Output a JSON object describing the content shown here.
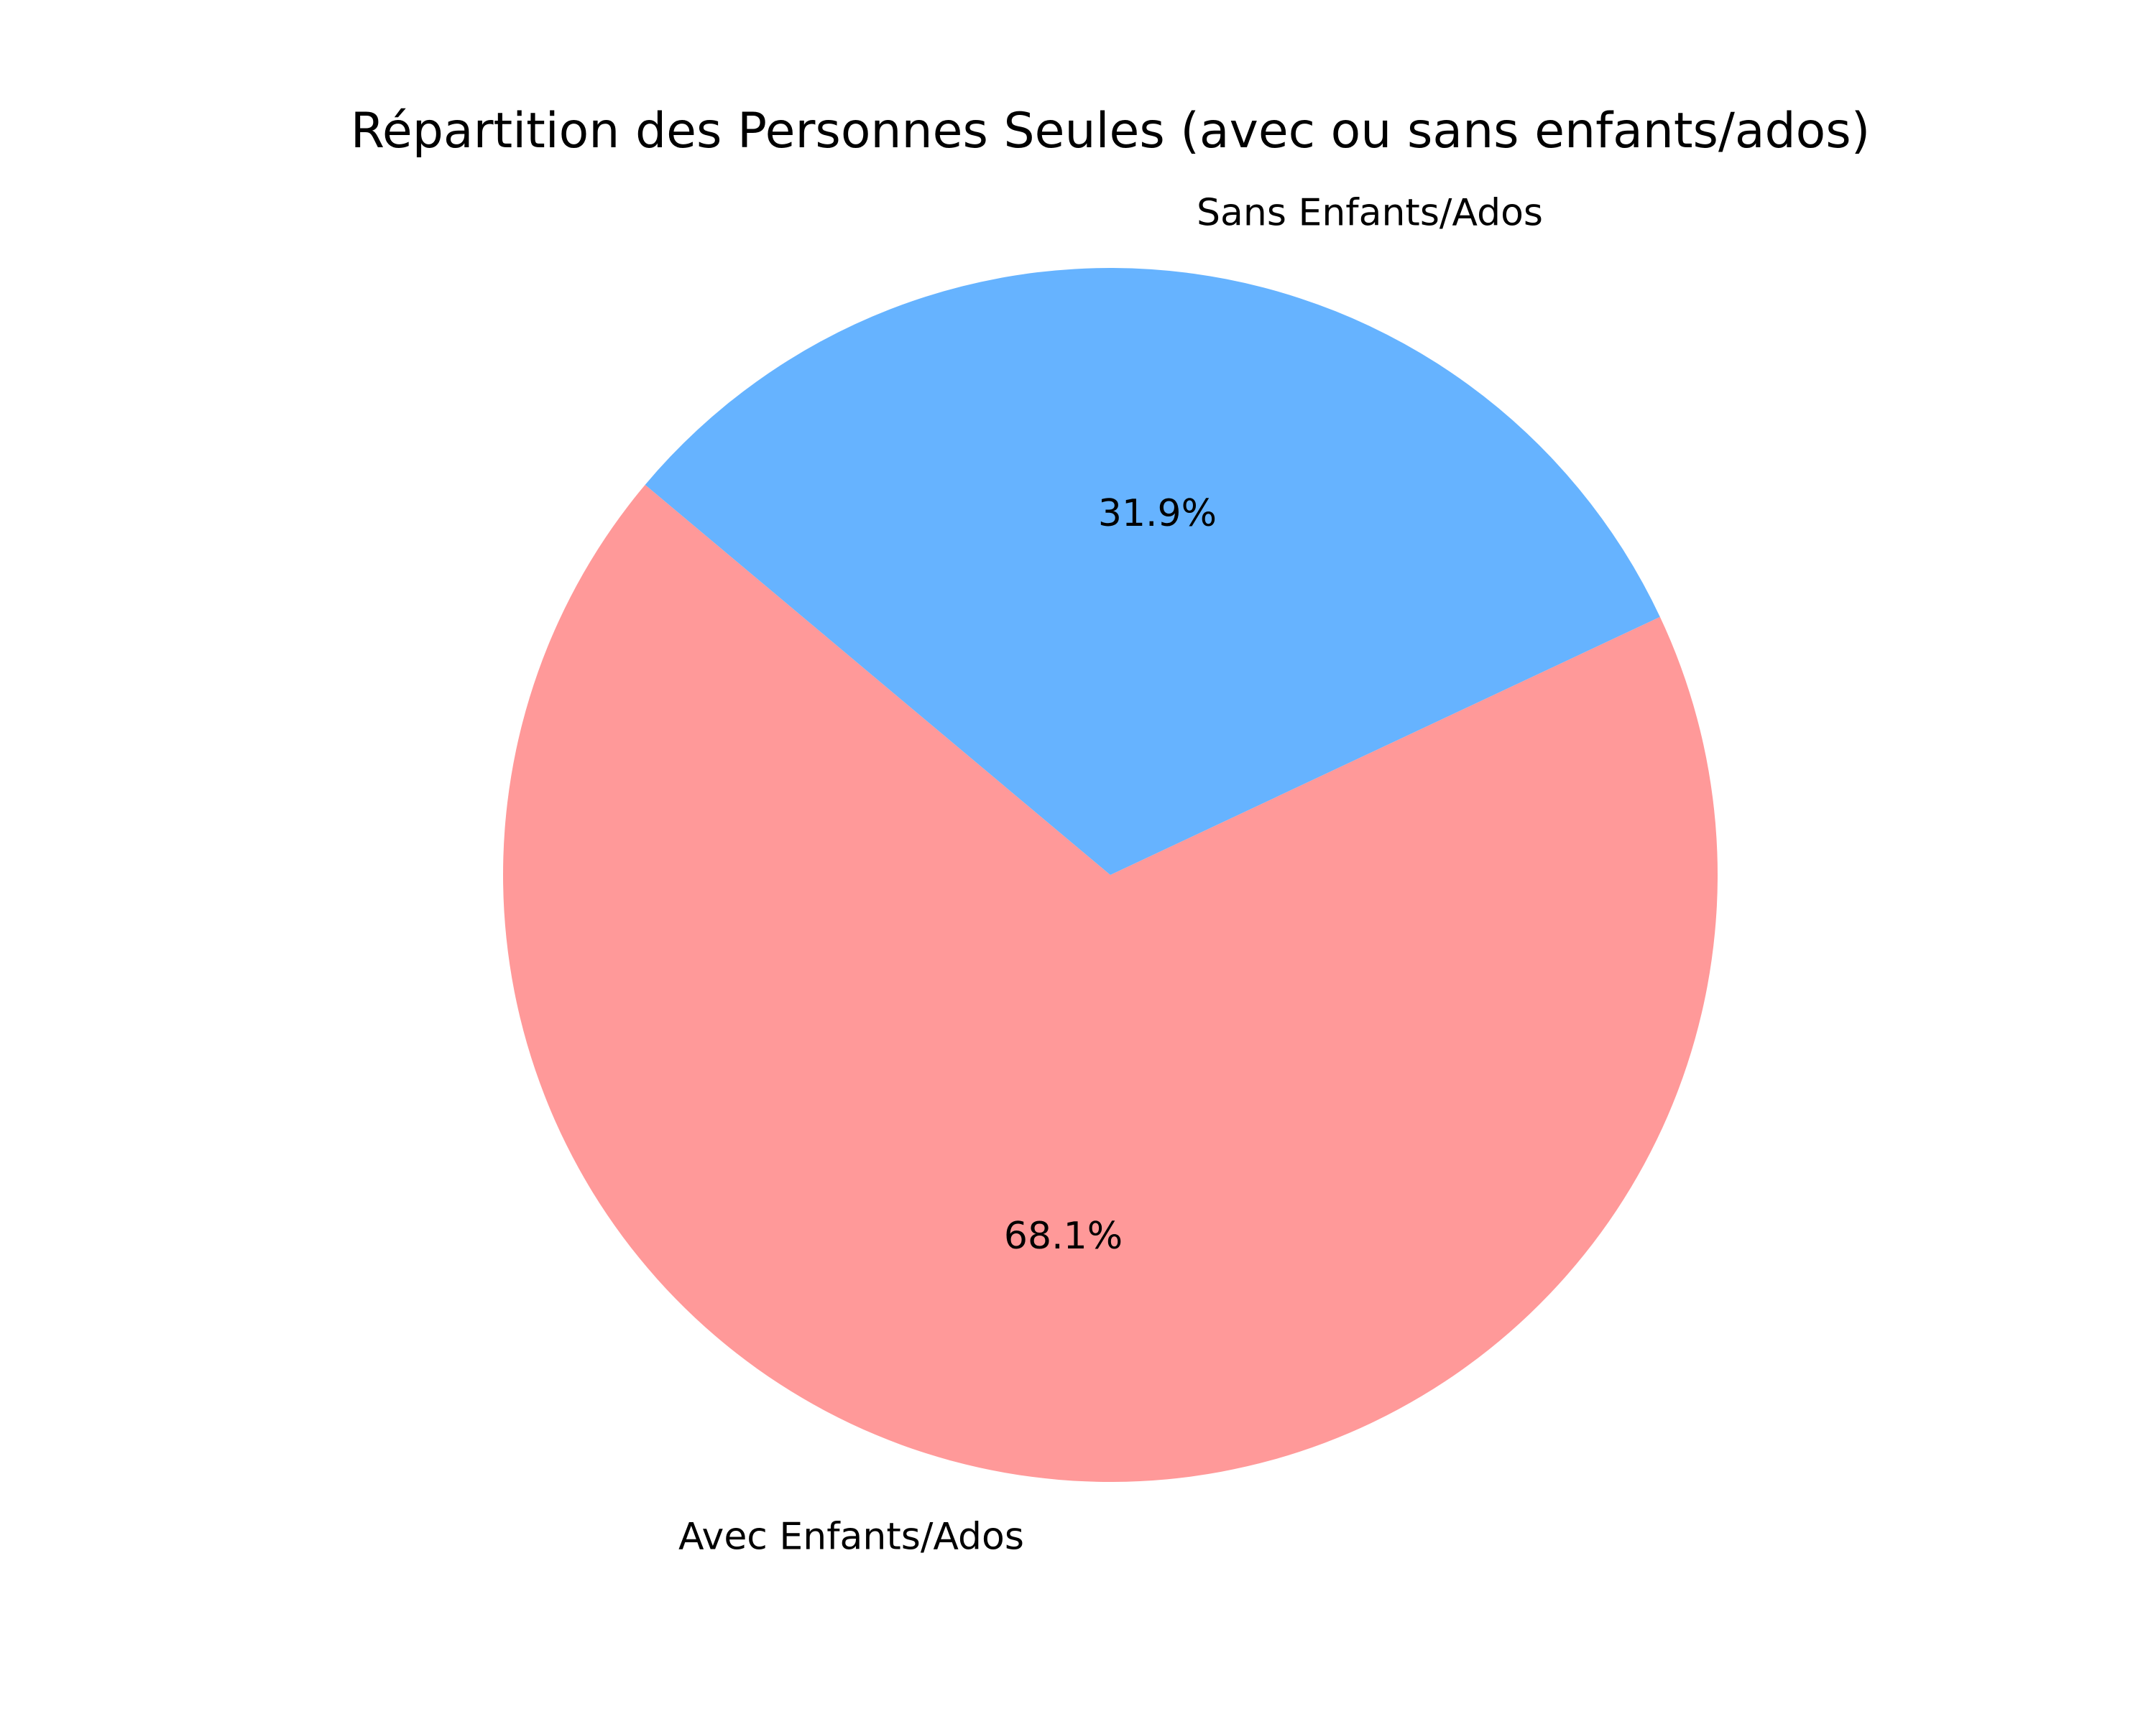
{
  "chart_data": {
    "type": "pie",
    "title": "Répartition des Personnes Seules (avec ou sans enfants/ados)",
    "labels": [
      "Avec Enfants/Ados",
      "Sans Enfants/Ados"
    ],
    "values": [
      68.1,
      31.9
    ],
    "value_labels": [
      "68.1%",
      "31.9%"
    ],
    "colors": [
      "#ff9999",
      "#66b3ff"
    ],
    "start_angle_deg": 140,
    "direction": "counterclockwise"
  }
}
